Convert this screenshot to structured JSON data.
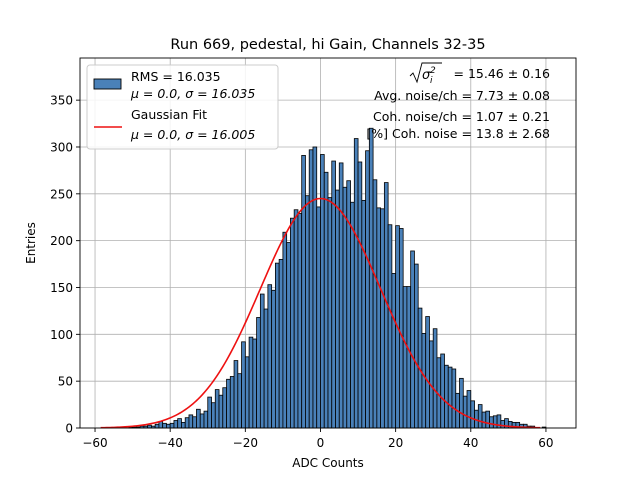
{
  "chart_data": {
    "type": "bar",
    "title": "Run 669, pedestal, hi Gain, Channels 32-35",
    "xlabel": "ADC Counts",
    "ylabel": "Entries",
    "xlim": [
      -64,
      68
    ],
    "ylim": [
      0,
      395
    ],
    "xticks": [
      -60,
      -40,
      -20,
      0,
      20,
      40,
      60
    ],
    "yticks": [
      0,
      50,
      100,
      150,
      200,
      250,
      300,
      350
    ],
    "grid": true,
    "legend": {
      "location": "upper-left",
      "entries": [
        {
          "label_line1": "RMS = 16.035",
          "label_line2": "μ = 0.0, σ = 16.035",
          "color": "#4a81b9",
          "kind": "patch"
        },
        {
          "label_line1": "Gaussian Fit",
          "label_line2": "μ = 0.0, σ = 16.005",
          "color": "#ee1111",
          "kind": "line"
        }
      ]
    },
    "annotations": {
      "sigma_value": "= 15.46 ± 0.16",
      "avg_noise": "Avg. noise/ch = 7.73 ± 0.08",
      "coh_noise": "Coh. noise/ch = 1.07 ± 0.21",
      "coh_pct": "[%] Coh. noise = 13.8 ± 2.68"
    },
    "fit": {
      "mu": 0.0,
      "sigma": 16.005,
      "amplitude": 245,
      "x_range": [
        -58.5,
        58.5
      ]
    },
    "histogram": {
      "start": -58,
      "bin_width": 1,
      "values": [
        0,
        0,
        0,
        0,
        0,
        0,
        0,
        1,
        1,
        1,
        2,
        2,
        3,
        2,
        4,
        7,
        5,
        4,
        5,
        8,
        10,
        6,
        11,
        14,
        12,
        20,
        15,
        18,
        33,
        27,
        41,
        35,
        43,
        52,
        55,
        72,
        58,
        92,
        76,
        97,
        95,
        118,
        143,
        127,
        153,
        147,
        176,
        180,
        209,
        198,
        224,
        233,
        229,
        291,
        248,
        297,
        300,
        236,
        292,
        273,
        246,
        285,
        254,
        283,
        257,
        264,
        241,
        309,
        284,
        243,
        296,
        320,
        265,
        235,
        234,
        262,
        217,
        165,
        216,
        213,
        151,
        151,
        189,
        175,
        128,
        101,
        119,
        93,
        106,
        75,
        79,
        67,
        65,
        63,
        37,
        53,
        34,
        40,
        29,
        19,
        25,
        17,
        18,
        12,
        13,
        14,
        8,
        10,
        7,
        6,
        6,
        4,
        4,
        2,
        2,
        0,
        0,
        1,
        0
      ]
    }
  }
}
